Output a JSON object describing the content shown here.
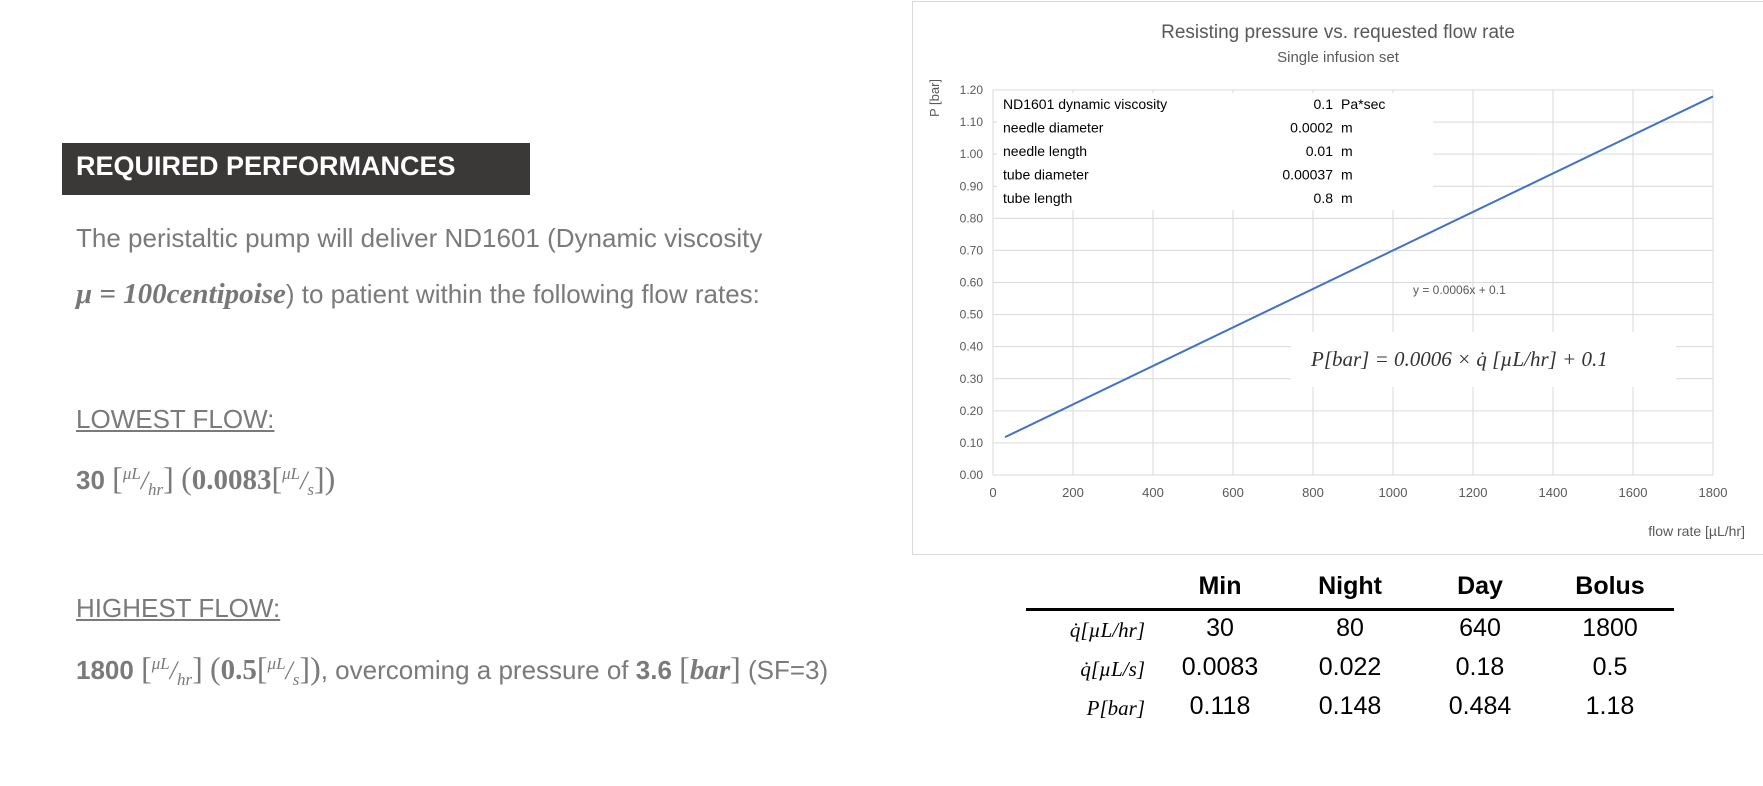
{
  "left": {
    "header": "REQUIRED PERFORMANCES",
    "intro_line1": "The peristaltic pump will deliver ND1601 (Dynamic viscosity",
    "intro_mu": "μ = 100centipoise",
    "intro_line2_rest": ") to patient within the following flow rates:",
    "lowest_label": "LOWEST FLOW:",
    "lowest_value": "30",
    "lowest_value_s": "0.0083",
    "highest_label": "HIGHEST FLOW:",
    "highest_value": "1800",
    "highest_value_s": "0.5",
    "highest_mid": ", overcoming a pressure of ",
    "highest_pressure": "3.6",
    "highest_bar": "bar",
    "highest_sf": " (SF=3)",
    "unit_num": "μL",
    "unit_hr": "hr",
    "unit_s": "s"
  },
  "chart_data": {
    "type": "line",
    "title": "Resisting pressure vs. requested flow rate",
    "subtitle": "Single infusion set",
    "xlabel": "flow rate [µL/hr]",
    "ylabel": "P [bar]",
    "xlim": [
      0,
      1800
    ],
    "ylim": [
      0,
      1.2
    ],
    "xticks": [
      "0",
      "200",
      "400",
      "600",
      "800",
      "1000",
      "1200",
      "1400",
      "1600",
      "1800"
    ],
    "yticks": [
      "0.00",
      "0.10",
      "0.20",
      "0.30",
      "0.40",
      "0.50",
      "0.60",
      "0.70",
      "0.80",
      "0.90",
      "1.00",
      "1.10",
      "1.20"
    ],
    "grid": true,
    "series": [
      {
        "x": [
          30,
          1800
        ],
        "y": [
          0.118,
          1.18
        ]
      }
    ],
    "trendline_label": "y = 0.0006x + 0.1",
    "equation_box": "P[bar] = 0.0006 × q̇ [µL/hr] + 0.1",
    "params": [
      {
        "name": "ND1601 dynamic viscosity",
        "value": "0.1",
        "unit": "Pa*sec"
      },
      {
        "name": "needle diameter",
        "value": "0.0002",
        "unit": "m"
      },
      {
        "name": "needle length",
        "value": "0.01",
        "unit": "m"
      },
      {
        "name": "tube diameter",
        "value": "0.00037",
        "unit": "m"
      },
      {
        "name": "tube length",
        "value": "0.8",
        "unit": "m"
      }
    ],
    "colors": {
      "line": "#4472c4",
      "grid": "#d9d9d9"
    }
  },
  "table": {
    "headers": [
      "Min",
      "Night",
      "Day",
      "Bolus"
    ],
    "rows": [
      {
        "label": "q̇[µL/hr]",
        "values": [
          "30",
          "80",
          "640",
          "1800"
        ]
      },
      {
        "label": "q̇[µL/s]",
        "values": [
          "0.0083",
          "0.022",
          "0.18",
          "0.5"
        ]
      },
      {
        "label": "P[bar]",
        "values": [
          "0.118",
          "0.148",
          "0.484",
          "1.18"
        ]
      }
    ]
  }
}
